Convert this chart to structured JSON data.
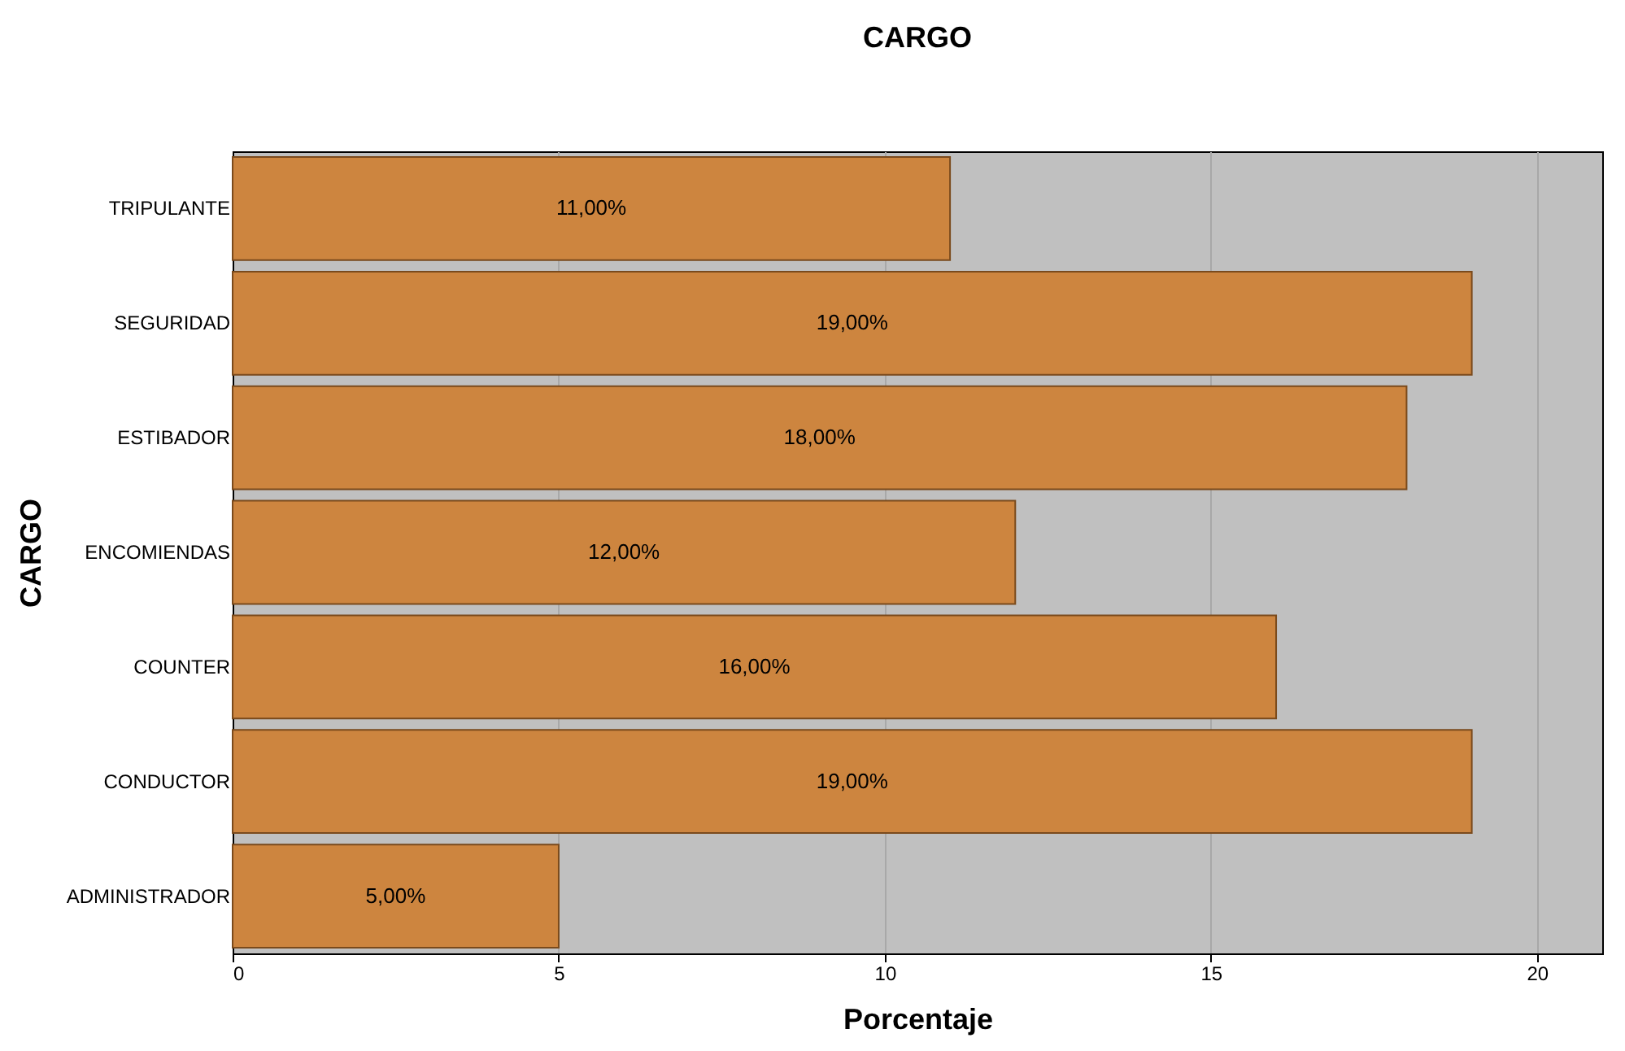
{
  "chart_data": {
    "type": "bar",
    "orientation": "horizontal",
    "title": "CARGO",
    "xlabel": "Porcentaje",
    "ylabel": "CARGO",
    "categories": [
      "TRIPULANTE",
      "SEGURIDAD",
      "ESTIBADOR",
      "ENCOMIENDAS",
      "COUNTER",
      "CONDUCTOR",
      "ADMINISTRADOR"
    ],
    "values": [
      11,
      19,
      18,
      12,
      16,
      19,
      5
    ],
    "value_labels": [
      "11,00%",
      "19,00%",
      "18,00%",
      "12,00%",
      "16,00%",
      "19,00%",
      "5,00%"
    ],
    "color": "#cd853f",
    "xlim": [
      0,
      21
    ],
    "xticks": [
      0,
      5,
      10,
      15,
      20
    ],
    "grid": "x"
  }
}
